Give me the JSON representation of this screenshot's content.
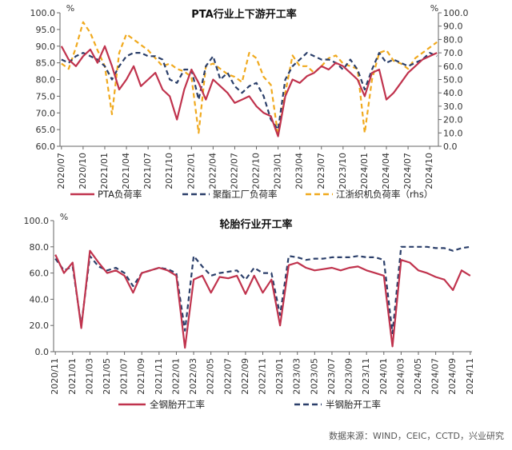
{
  "colors": {
    "pta": "#c0334d",
    "polyester": "#2b3f6a",
    "jiangzhe": "#f0a91d",
    "tyre_all": "#c0334d",
    "tyre_semi": "#2b3f6a"
  },
  "source": "数据来源：WIND，CEIC，CCTD，兴业研究",
  "chart_data": [
    {
      "type": "line",
      "title": "PTA行业上下游开工率",
      "left_unit": "%",
      "right_unit": "%",
      "ylim_left": [
        60,
        100
      ],
      "ylim_right": [
        0,
        100
      ],
      "yticks_left": [
        "60.0",
        "65.0",
        "70.0",
        "75.0",
        "80.0",
        "85.0",
        "90.0",
        "95.0",
        "100.0"
      ],
      "yticks_right": [
        "0.0",
        "10.0",
        "20.0",
        "30.0",
        "40.0",
        "50.0",
        "60.0",
        "70.0",
        "80.0",
        "90.0",
        "100.0"
      ],
      "x_ticks": [
        "2020/07",
        "2020/10",
        "2021/01",
        "2021/04",
        "2021/07",
        "2021/10",
        "2022/01",
        "2022/04",
        "2022/07",
        "2022/10",
        "2023/01",
        "2023/04",
        "2023/07",
        "2023/10",
        "2024/01",
        "2024/04",
        "2024/07",
        "2024/10"
      ],
      "series": [
        {
          "name": "PTA负荷率",
          "axis": "left",
          "style": "solid",
          "x": [
            "2020/07",
            "2020/08",
            "2020/09",
            "2020/10",
            "2020/11",
            "2020/12",
            "2021/01",
            "2021/02",
            "2021/03",
            "2021/04",
            "2021/05",
            "2021/06",
            "2021/07",
            "2021/08",
            "2021/09",
            "2021/10",
            "2021/11",
            "2021/12",
            "2022/01",
            "2022/02",
            "2022/03",
            "2022/04",
            "2022/05",
            "2022/06",
            "2022/07",
            "2022/08",
            "2022/09",
            "2022/10",
            "2022/11",
            "2022/12",
            "2023/01",
            "2023/02",
            "2023/03",
            "2023/04",
            "2023/05",
            "2023/06",
            "2023/07",
            "2023/08",
            "2023/09",
            "2023/10",
            "2023/11",
            "2023/12",
            "2024/01",
            "2024/02",
            "2024/03",
            "2024/04",
            "2024/05",
            "2024/06",
            "2024/07",
            "2024/08",
            "2024/09",
            "2024/10",
            "2024/11"
          ],
          "values": [
            90,
            86,
            84,
            87,
            89,
            85,
            90,
            84,
            77,
            80,
            84,
            78,
            80,
            82,
            77,
            75,
            68,
            77,
            83,
            79,
            74,
            80,
            78,
            76,
            73,
            74,
            75,
            72,
            70,
            69,
            63,
            75,
            80,
            79,
            81,
            82,
            84,
            83,
            85,
            84,
            82,
            80,
            75,
            82,
            83,
            74,
            76,
            79,
            82,
            84,
            86,
            87,
            88
          ]
        },
        {
          "name": "聚酯工厂负荷率",
          "axis": "left",
          "style": "dashed",
          "x": [
            "2020/07",
            "2020/08",
            "2020/09",
            "2020/10",
            "2020/11",
            "2020/12",
            "2021/01",
            "2021/02",
            "2021/03",
            "2021/04",
            "2021/05",
            "2021/06",
            "2021/07",
            "2021/08",
            "2021/09",
            "2021/10",
            "2021/11",
            "2021/12",
            "2022/01",
            "2022/02",
            "2022/03",
            "2022/04",
            "2022/05",
            "2022/06",
            "2022/07",
            "2022/08",
            "2022/09",
            "2022/10",
            "2022/11",
            "2022/12",
            "2023/01",
            "2023/02",
            "2023/03",
            "2023/04",
            "2023/05",
            "2023/06",
            "2023/07",
            "2023/08",
            "2023/09",
            "2023/10",
            "2023/11",
            "2023/12",
            "2024/01",
            "2024/02",
            "2024/03",
            "2024/04",
            "2024/05",
            "2024/06",
            "2024/07",
            "2024/08",
            "2024/09",
            "2024/10",
            "2024/11"
          ],
          "values": [
            86,
            85,
            87,
            88,
            87,
            86,
            84,
            80,
            84,
            87,
            88,
            88,
            87,
            87,
            86,
            80,
            79,
            83,
            83,
            74,
            84,
            87,
            80,
            82,
            78,
            76,
            78,
            79,
            75,
            68,
            65,
            80,
            84,
            86,
            88,
            87,
            86,
            86,
            85,
            83,
            86,
            83,
            77,
            83,
            88,
            85,
            86,
            85,
            84,
            85,
            86,
            88,
            87
          ]
        },
        {
          "name": "江浙织机负荷率（rhs）",
          "axis": "right",
          "style": "dashed",
          "x": [
            "2020/07",
            "2020/08",
            "2020/09",
            "2020/10",
            "2020/11",
            "2020/12",
            "2021/01",
            "2021/02",
            "2021/03",
            "2021/04",
            "2021/05",
            "2021/06",
            "2021/07",
            "2021/08",
            "2021/09",
            "2021/10",
            "2021/11",
            "2021/12",
            "2022/01",
            "2022/02",
            "2022/03",
            "2022/04",
            "2022/05",
            "2022/06",
            "2022/07",
            "2022/08",
            "2022/09",
            "2022/10",
            "2022/11",
            "2022/12",
            "2023/01",
            "2023/02",
            "2023/03",
            "2023/04",
            "2023/05",
            "2023/06",
            "2023/07",
            "2023/08",
            "2023/09",
            "2023/10",
            "2023/11",
            "2023/12",
            "2024/01",
            "2024/02",
            "2024/03",
            "2024/04",
            "2024/05",
            "2024/06",
            "2024/07",
            "2024/08",
            "2024/09",
            "2024/10",
            "2024/11"
          ],
          "values": [
            62,
            58,
            74,
            93,
            85,
            72,
            60,
            24,
            70,
            84,
            80,
            76,
            72,
            66,
            60,
            62,
            58,
            56,
            52,
            10,
            60,
            62,
            58,
            54,
            52,
            48,
            70,
            66,
            52,
            46,
            8,
            40,
            68,
            60,
            60,
            55,
            60,
            66,
            68,
            62,
            60,
            58,
            10,
            50,
            70,
            72,
            64,
            62,
            58,
            66,
            70,
            74,
            78
          ]
        }
      ]
    },
    {
      "type": "line",
      "title": "轮胎行业开工率",
      "unit": "%",
      "ylim": [
        0,
        100
      ],
      "yticks": [
        "0.0",
        "20.0",
        "40.0",
        "60.0",
        "80.0",
        "100.0"
      ],
      "x_ticks": [
        "2020/11",
        "2021/01",
        "2021/03",
        "2021/05",
        "2021/07",
        "2021/09",
        "2021/11",
        "2022/01",
        "2022/03",
        "2022/05",
        "2022/07",
        "2022/09",
        "2022/11",
        "2023/01",
        "2023/03",
        "2023/05",
        "2023/07",
        "2023/09",
        "2023/11",
        "2024/01",
        "2024/03",
        "2024/05",
        "2024/07",
        "2024/09",
        "2024/11"
      ],
      "series": [
        {
          "name": "全钢胎开工率",
          "style": "solid",
          "x": [
            "2020/11",
            "2020/12",
            "2021/01",
            "2021/02",
            "2021/03",
            "2021/04",
            "2021/05",
            "2021/06",
            "2021/07",
            "2021/08",
            "2021/09",
            "2021/10",
            "2021/11",
            "2021/12",
            "2022/01",
            "2022/02",
            "2022/03",
            "2022/04",
            "2022/05",
            "2022/06",
            "2022/07",
            "2022/08",
            "2022/09",
            "2022/10",
            "2022/11",
            "2022/12",
            "2023/01",
            "2023/02",
            "2023/03",
            "2023/04",
            "2023/05",
            "2023/06",
            "2023/07",
            "2023/08",
            "2023/09",
            "2023/10",
            "2023/11",
            "2023/12",
            "2024/01",
            "2024/02",
            "2024/03",
            "2024/04",
            "2024/05",
            "2024/06",
            "2024/07",
            "2024/08",
            "2024/09",
            "2024/10",
            "2024/11"
          ],
          "values": [
            74,
            60,
            68,
            18,
            77,
            68,
            60,
            62,
            58,
            45,
            60,
            62,
            64,
            62,
            58,
            3,
            55,
            58,
            45,
            57,
            56,
            58,
            44,
            58,
            45,
            55,
            20,
            66,
            68,
            64,
            62,
            63,
            64,
            62,
            64,
            65,
            62,
            60,
            58,
            4,
            70,
            68,
            62,
            60,
            57,
            55,
            47,
            62,
            58
          ]
        },
        {
          "name": "半钢胎开工率",
          "style": "dashed",
          "x": [
            "2020/11",
            "2020/12",
            "2021/01",
            "2021/02",
            "2021/03",
            "2021/04",
            "2021/05",
            "2021/06",
            "2021/07",
            "2021/08",
            "2021/09",
            "2021/10",
            "2021/11",
            "2021/12",
            "2022/01",
            "2022/02",
            "2022/03",
            "2022/04",
            "2022/05",
            "2022/06",
            "2022/07",
            "2022/08",
            "2022/09",
            "2022/10",
            "2022/11",
            "2022/12",
            "2023/01",
            "2023/02",
            "2023/03",
            "2023/04",
            "2023/05",
            "2023/06",
            "2023/07",
            "2023/08",
            "2023/09",
            "2023/10",
            "2023/11",
            "2023/12",
            "2024/01",
            "2024/02",
            "2024/03",
            "2024/04",
            "2024/05",
            "2024/06",
            "2024/07",
            "2024/08",
            "2024/09",
            "2024/10",
            "2024/11"
          ],
          "values": [
            71,
            62,
            65,
            20,
            73,
            65,
            62,
            64,
            60,
            50,
            60,
            62,
            64,
            63,
            60,
            16,
            73,
            65,
            58,
            60,
            61,
            62,
            55,
            64,
            60,
            60,
            28,
            73,
            72,
            70,
            71,
            71,
            72,
            72,
            72,
            73,
            72,
            72,
            70,
            14,
            80,
            80,
            80,
            80,
            79,
            79,
            77,
            79,
            80
          ]
        }
      ]
    }
  ]
}
